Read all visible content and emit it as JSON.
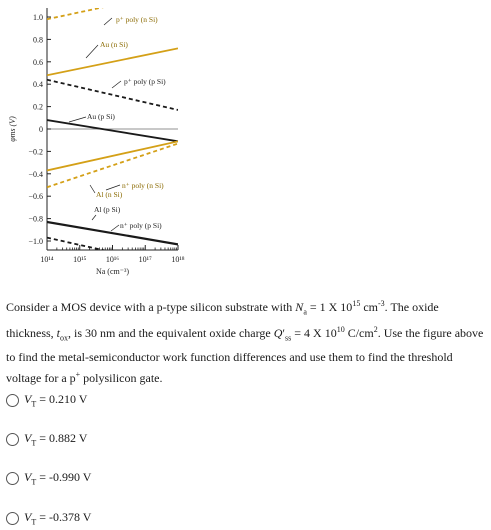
{
  "chart_data": {
    "type": "line",
    "ylabel": "φms (V)",
    "xlabel": "Na (cm⁻³)",
    "xlim": [
      100000000000000.0,
      1e+18
    ],
    "ylim": [
      -1.1,
      1.1
    ],
    "x_scale": "log",
    "grid": false,
    "y_ticks": [
      "1.0",
      "0.8",
      "0.6",
      "0.4",
      "0.2",
      "0",
      "−0.2",
      "−0.4",
      "−0.6",
      "−0.8",
      "−1.0"
    ],
    "x_ticks": [
      "10¹⁴",
      "10¹⁵",
      "10¹⁶",
      "10¹⁷",
      "10¹⁸"
    ],
    "series": [
      {
        "name": "p⁺ poly (n Si)",
        "color": "#d4a017",
        "dashed": true,
        "x": [
          100000000000000.0,
          1e+18
        ],
        "y": [
          0.98,
          1.23
        ]
      },
      {
        "name": "Au (n Si)",
        "color": "#d4a017",
        "dashed": false,
        "x": [
          100000000000000.0,
          1e+18
        ],
        "y": [
          0.48,
          0.72
        ]
      },
      {
        "name": "p⁺ poly (p Si)",
        "color": "#1a1a1a",
        "dashed": true,
        "x": [
          100000000000000.0,
          1e+18
        ],
        "y": [
          0.44,
          0.17
        ]
      },
      {
        "name": "Au (p Si)",
        "color": "#1a1a1a",
        "dashed": false,
        "x": [
          100000000000000.0,
          1e+18
        ],
        "y": [
          0.08,
          -0.11
        ]
      },
      {
        "name": "n⁺ poly (n Si)",
        "color": "#d4a017",
        "dashed": true,
        "x": [
          100000000000000.0,
          1e+18
        ],
        "y": [
          -0.52,
          -0.13
        ]
      },
      {
        "name": "Al (n Si)",
        "color": "#d4a017",
        "dashed": false,
        "x": [
          100000000000000.0,
          1e+18
        ],
        "y": [
          -0.37,
          -0.11
        ]
      },
      {
        "name": "Al (p Si)",
        "color": "#1a1a1a",
        "dashed": false,
        "x": [
          100000000000000.0,
          1e+18
        ],
        "y": [
          -0.83,
          -1.03
        ]
      },
      {
        "name": "n⁺ poly (p Si)",
        "color": "#1a1a1a",
        "dashed": true,
        "x": [
          100000000000000.0,
          1e+18
        ],
        "y": [
          -0.97,
          -1.23
        ]
      }
    ]
  },
  "question": {
    "seg1": "Consider a MOS device with a p-type silicon substrate with ",
    "na_var": "N",
    "na_sub": "a",
    "seg2": " = 1 X 10",
    "na_exp": "15",
    "seg3": " cm",
    "cm_exp": "-3",
    "seg4": ". The oxide thickness, ",
    "tox_var": "t",
    "tox_sub": "ox",
    "seg5": ", is 30 nm and the equivalent oxide charge ",
    "qss_var": "Q",
    "qss_prime": "′",
    "qss_sub": "ss",
    "seg6": " = 4 X 10",
    "q_exp": "10",
    "seg7": " C/cm",
    "cm2_exp": "2",
    "seg8": ". Use the figure above to find the metal-semiconductor work function differences and use them to find the threshold voltage for a p",
    "plus": "+",
    "seg9": " polysilicon gate."
  },
  "options": [
    {
      "var": "V",
      "sub": "T",
      "value": "= 0.210 V"
    },
    {
      "var": "V",
      "sub": "T",
      "value": "= 0.882 V"
    },
    {
      "var": "V",
      "sub": "T",
      "value": "= -0.990 V"
    },
    {
      "var": "V",
      "sub": "T",
      "value": "= -0.378 V"
    }
  ]
}
